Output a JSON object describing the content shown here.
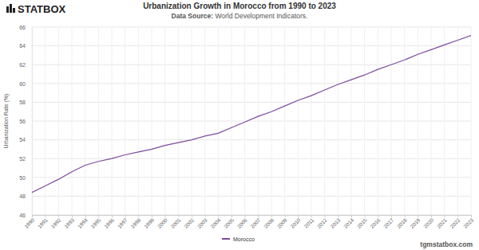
{
  "chart_data": {
    "type": "line",
    "logo": "STATBOX",
    "title": "Urbanization Growth in Morocco from 1990 to 2023",
    "subtitle_label": "Data Source:",
    "subtitle": "World Development Indicators.",
    "y_label": "Urbanization Rate (%)",
    "footer": "tgmstatbox.com",
    "categories": [
      "1990",
      "1991",
      "1992",
      "1993",
      "1994",
      "1995",
      "1996",
      "1997",
      "1998",
      "1999",
      "2000",
      "2001",
      "2002",
      "2003",
      "2004",
      "2005",
      "2006",
      "2007",
      "2008",
      "2009",
      "2010",
      "2011",
      "2012",
      "2013",
      "2014",
      "2015",
      "2016",
      "2017",
      "2018",
      "2019",
      "2020",
      "2021",
      "2022",
      "2023"
    ],
    "series": [
      {
        "name": "Morocco",
        "color": "#7d4a9e",
        "values": [
          48.4,
          49.1,
          49.8,
          50.6,
          51.3,
          51.7,
          52.0,
          52.4,
          52.7,
          53.0,
          53.4,
          53.7,
          54.0,
          54.4,
          54.7,
          55.3,
          55.9,
          56.5,
          57.0,
          57.6,
          58.2,
          58.7,
          59.3,
          59.9,
          60.4,
          60.9,
          61.5,
          62.0,
          62.5,
          63.1,
          63.6,
          64.1,
          64.6,
          65.1
        ]
      }
    ],
    "ylim": [
      46,
      66
    ],
    "yticks": [
      46,
      48,
      50,
      52,
      54,
      56,
      58,
      60,
      62,
      64,
      66
    ],
    "grid": true,
    "legend": "bottom"
  }
}
